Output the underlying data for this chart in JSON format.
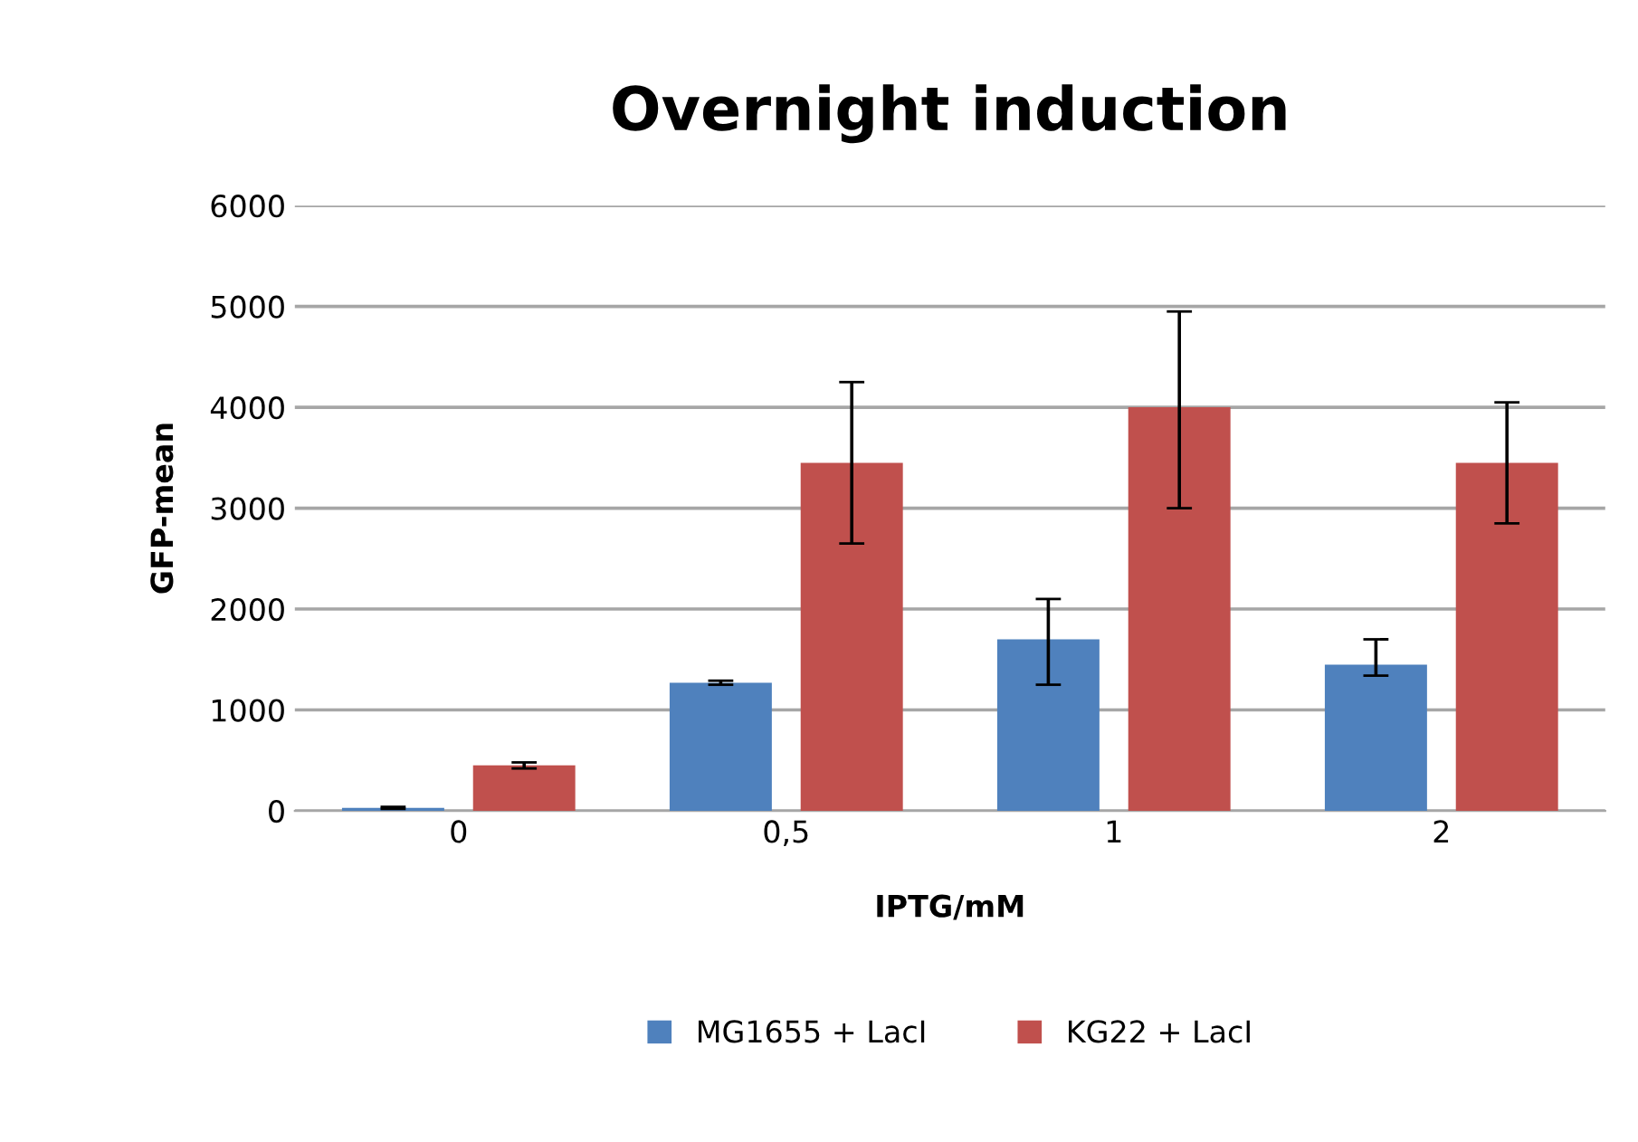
{
  "chart_data": {
    "type": "bar",
    "title": "Overnight induction",
    "xlabel": "IPTG/mM",
    "ylabel": "GFP-mean",
    "categories": [
      "0",
      "0,5",
      "1",
      "2"
    ],
    "series": [
      {
        "name": "MG1655 + LacI",
        "color": "#4f81bd",
        "values": [
          30,
          1270,
          1700,
          1450
        ],
        "errors": [
          10,
          20,
          [
            1250,
            2100
          ],
          [
            1340,
            1700
          ]
        ]
      },
      {
        "name": "KG22 + LacI",
        "color": "#c0504d",
        "values": [
          450,
          3450,
          4000,
          3450
        ],
        "errors": [
          30,
          [
            2650,
            4250
          ],
          [
            3000,
            4950
          ],
          [
            2850,
            4050
          ]
        ]
      }
    ],
    "ylim": [
      0,
      6000
    ],
    "yticks": [
      0,
      1000,
      2000,
      3000,
      4000,
      5000,
      6000
    ],
    "grid": "y",
    "legend": "bottom"
  }
}
